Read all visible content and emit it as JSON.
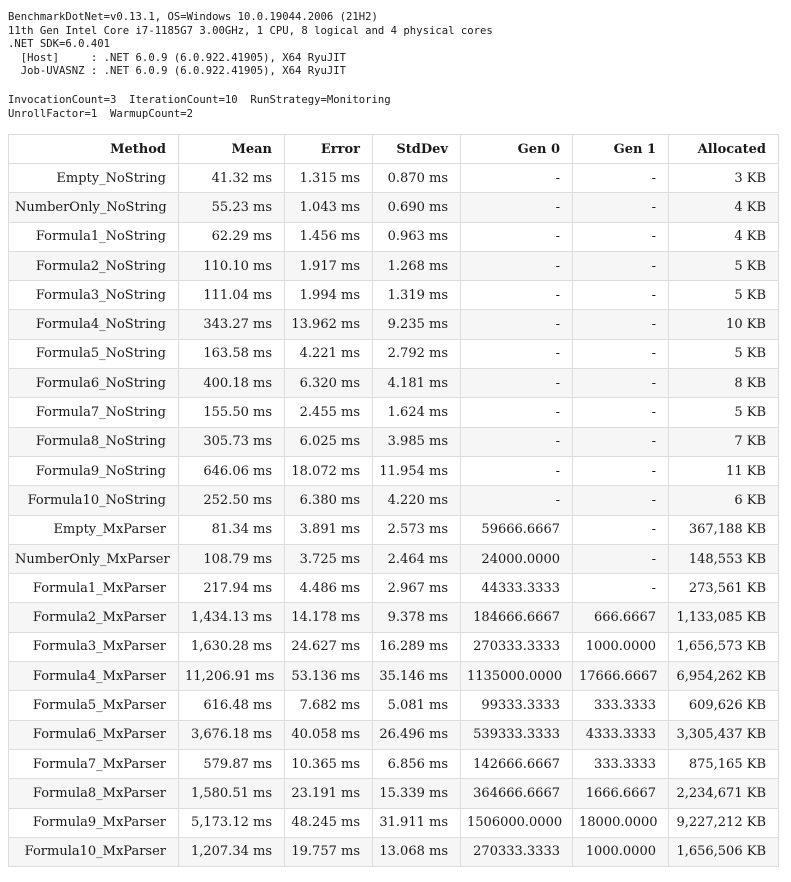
{
  "environment_lines": [
    "BenchmarkDotNet=v0.13.1, OS=Windows 10.0.19044.2006 (21H2)",
    "11th Gen Intel Core i7-1185G7 3.00GHz, 1 CPU, 8 logical and 4 physical cores",
    ".NET SDK=6.0.401",
    "  [Host]     : .NET 6.0.9 (6.0.922.41905), X64 RyuJIT",
    "  Job-UVASNZ : .NET 6.0.9 (6.0.922.41905), X64 RyuJIT"
  ],
  "job_lines": [
    "InvocationCount=3  IterationCount=10  RunStrategy=Monitoring",
    "UnrollFactor=1  WarmupCount=2"
  ],
  "table": {
    "columns": [
      "Method",
      "Mean",
      "Error",
      "StdDev",
      "Gen 0",
      "Gen 1",
      "Allocated"
    ],
    "rows": [
      [
        "Empty_NoString",
        "41.32 ms",
        "1.315 ms",
        "0.870 ms",
        "-",
        "-",
        "3 KB"
      ],
      [
        "NumberOnly_NoString",
        "55.23 ms",
        "1.043 ms",
        "0.690 ms",
        "-",
        "-",
        "4 KB"
      ],
      [
        "Formula1_NoString",
        "62.29 ms",
        "1.456 ms",
        "0.963 ms",
        "-",
        "-",
        "4 KB"
      ],
      [
        "Formula2_NoString",
        "110.10 ms",
        "1.917 ms",
        "1.268 ms",
        "-",
        "-",
        "5 KB"
      ],
      [
        "Formula3_NoString",
        "111.04 ms",
        "1.994 ms",
        "1.319 ms",
        "-",
        "-",
        "5 KB"
      ],
      [
        "Formula4_NoString",
        "343.27 ms",
        "13.962 ms",
        "9.235 ms",
        "-",
        "-",
        "10 KB"
      ],
      [
        "Formula5_NoString",
        "163.58 ms",
        "4.221 ms",
        "2.792 ms",
        "-",
        "-",
        "5 KB"
      ],
      [
        "Formula6_NoString",
        "400.18 ms",
        "6.320 ms",
        "4.181 ms",
        "-",
        "-",
        "8 KB"
      ],
      [
        "Formula7_NoString",
        "155.50 ms",
        "2.455 ms",
        "1.624 ms",
        "-",
        "-",
        "5 KB"
      ],
      [
        "Formula8_NoString",
        "305.73 ms",
        "6.025 ms",
        "3.985 ms",
        "-",
        "-",
        "7 KB"
      ],
      [
        "Formula9_NoString",
        "646.06 ms",
        "18.072 ms",
        "11.954 ms",
        "-",
        "-",
        "11 KB"
      ],
      [
        "Formula10_NoString",
        "252.50 ms",
        "6.380 ms",
        "4.220 ms",
        "-",
        "-",
        "6 KB"
      ],
      [
        "Empty_MxParser",
        "81.34 ms",
        "3.891 ms",
        "2.573 ms",
        "59666.6667",
        "-",
        "367,188 KB"
      ],
      [
        "NumberOnly_MxParser",
        "108.79 ms",
        "3.725 ms",
        "2.464 ms",
        "24000.0000",
        "-",
        "148,553 KB"
      ],
      [
        "Formula1_MxParser",
        "217.94 ms",
        "4.486 ms",
        "2.967 ms",
        "44333.3333",
        "-",
        "273,561 KB"
      ],
      [
        "Formula2_MxParser",
        "1,434.13 ms",
        "14.178 ms",
        "9.378 ms",
        "184666.6667",
        "666.6667",
        "1,133,085 KB"
      ],
      [
        "Formula3_MxParser",
        "1,630.28 ms",
        "24.627 ms",
        "16.289 ms",
        "270333.3333",
        "1000.0000",
        "1,656,573 KB"
      ],
      [
        "Formula4_MxParser",
        "11,206.91 ms",
        "53.136 ms",
        "35.146 ms",
        "1135000.0000",
        "17666.6667",
        "6,954,262 KB"
      ],
      [
        "Formula5_MxParser",
        "616.48 ms",
        "7.682 ms",
        "5.081 ms",
        "99333.3333",
        "333.3333",
        "609,626 KB"
      ],
      [
        "Formula6_MxParser",
        "3,676.18 ms",
        "40.058 ms",
        "26.496 ms",
        "539333.3333",
        "4333.3333",
        "3,305,437 KB"
      ],
      [
        "Formula7_MxParser",
        "579.87 ms",
        "10.365 ms",
        "6.856 ms",
        "142666.6667",
        "333.3333",
        "875,165 KB"
      ],
      [
        "Formula8_MxParser",
        "1,580.51 ms",
        "23.191 ms",
        "15.339 ms",
        "364666.6667",
        "1666.6667",
        "2,234,671 KB"
      ],
      [
        "Formula9_MxParser",
        "5,173.12 ms",
        "48.245 ms",
        "31.911 ms",
        "1506000.0000",
        "18000.0000",
        "9,227,212 KB"
      ],
      [
        "Formula10_MxParser",
        "1,207.34 ms",
        "19.757 ms",
        "13.068 ms",
        "270333.3333",
        "1000.0000",
        "1,656,506 KB"
      ]
    ]
  }
}
